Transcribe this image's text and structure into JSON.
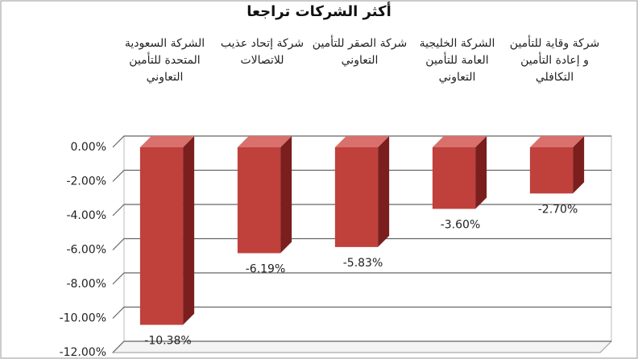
{
  "chart_data": {
    "type": "bar",
    "title": "أكثر الشركات تراجعا",
    "categories": [
      "الشركة السعودية المتحدة للتأمين التعاوني",
      "شركة إتحاد عذيب للاتصالات",
      "شركة الصقر للتأمين التعاوني",
      "الشركة الخليجية العامة للتأمين التعاوني",
      "شركة وقاية للتأمين و إعادة التأمين التكافلي"
    ],
    "values": [
      -10.38,
      -6.19,
      -5.83,
      -3.6,
      -2.7
    ],
    "value_labels": [
      "-10.38%",
      "-6.19%",
      "-5.83%",
      "-3.60%",
      "-2.70%"
    ],
    "color": "#c0403c",
    "ylim": [
      -12,
      0
    ],
    "yticks": [
      {
        "value": 0,
        "label": "0.00%"
      },
      {
        "value": -2,
        "label": "-2.00%"
      },
      {
        "value": -4,
        "label": "-4.00%"
      },
      {
        "value": -6,
        "label": "-6.00%"
      },
      {
        "value": -8,
        "label": "-8.00%"
      },
      {
        "value": -10,
        "label": "-10.00%"
      },
      {
        "value": -12,
        "label": "-12.00%"
      }
    ],
    "grid": true
  }
}
